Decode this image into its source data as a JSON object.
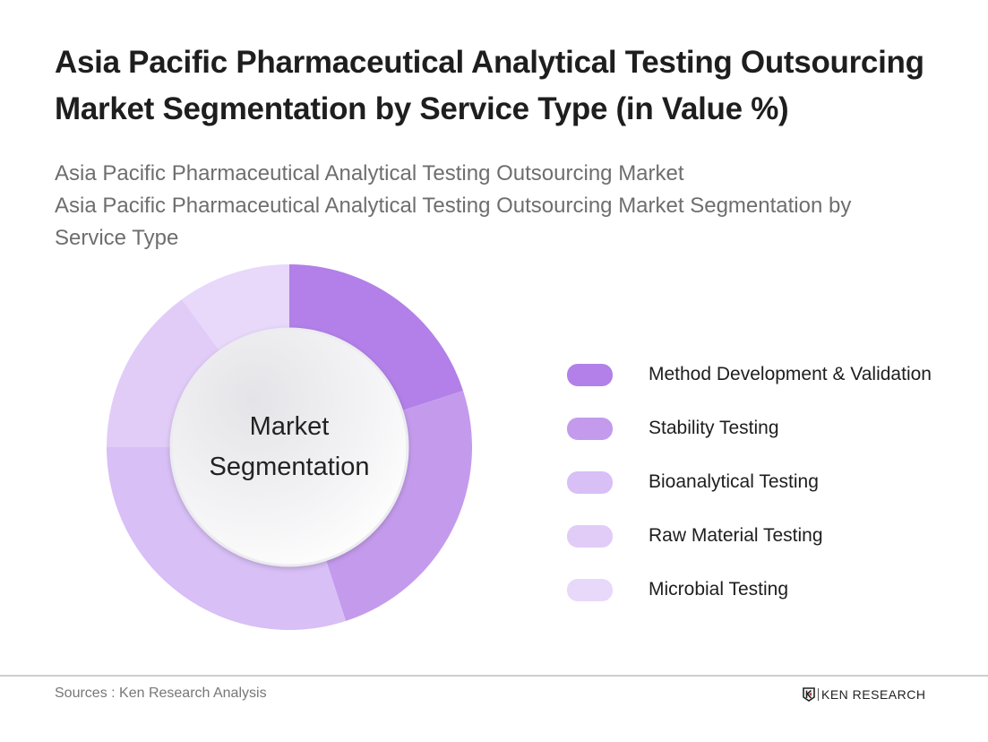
{
  "header": {
    "title_line1": "Asia Pacific Pharmaceutical Analytical Testing Outsourcing",
    "title_line2": "Market Segmentation by Service Type (in Value %)",
    "subtitle_line1": "Asia Pacific Pharmaceutical Analytical Testing Outsourcing Market",
    "subtitle_line2": "Asia Pacific Pharmaceutical Analytical Testing Outsourcing Market Segmentation by",
    "subtitle_line3": "Service Type"
  },
  "center_label": {
    "line1": "Market",
    "line2": "Segmentation"
  },
  "legend": [
    {
      "label": "Method Development & Validation",
      "color": "#b280e8"
    },
    {
      "label": "Stability Testing",
      "color": "#c49bec"
    },
    {
      "label": "Bioanalytical Testing",
      "color": "#d8bff6"
    },
    {
      "label": "Raw Material Testing",
      "color": "#e1ccf8"
    },
    {
      "label": "Microbial Testing",
      "color": "#e8d8fa"
    }
  ],
  "footer": {
    "source": "Sources : Ken Research Analysis",
    "brand": "KEN RESEARCH"
  },
  "chart_data": {
    "type": "pie",
    "variant": "donut",
    "title": "Asia Pacific Pharmaceutical Analytical Testing Outsourcing Market Segmentation by Service Type (in Value %)",
    "center_text": "Market Segmentation",
    "categories": [
      "Method Development & Validation",
      "Stability Testing",
      "Bioanalytical Testing",
      "Raw Material Testing",
      "Microbial Testing"
    ],
    "values": [
      20,
      25,
      30,
      15,
      10
    ],
    "colors": [
      "#b280e8",
      "#c49bec",
      "#d8bff6",
      "#e1ccf8",
      "#e8d8fa"
    ],
    "legend_position": "right",
    "unit": "%"
  }
}
